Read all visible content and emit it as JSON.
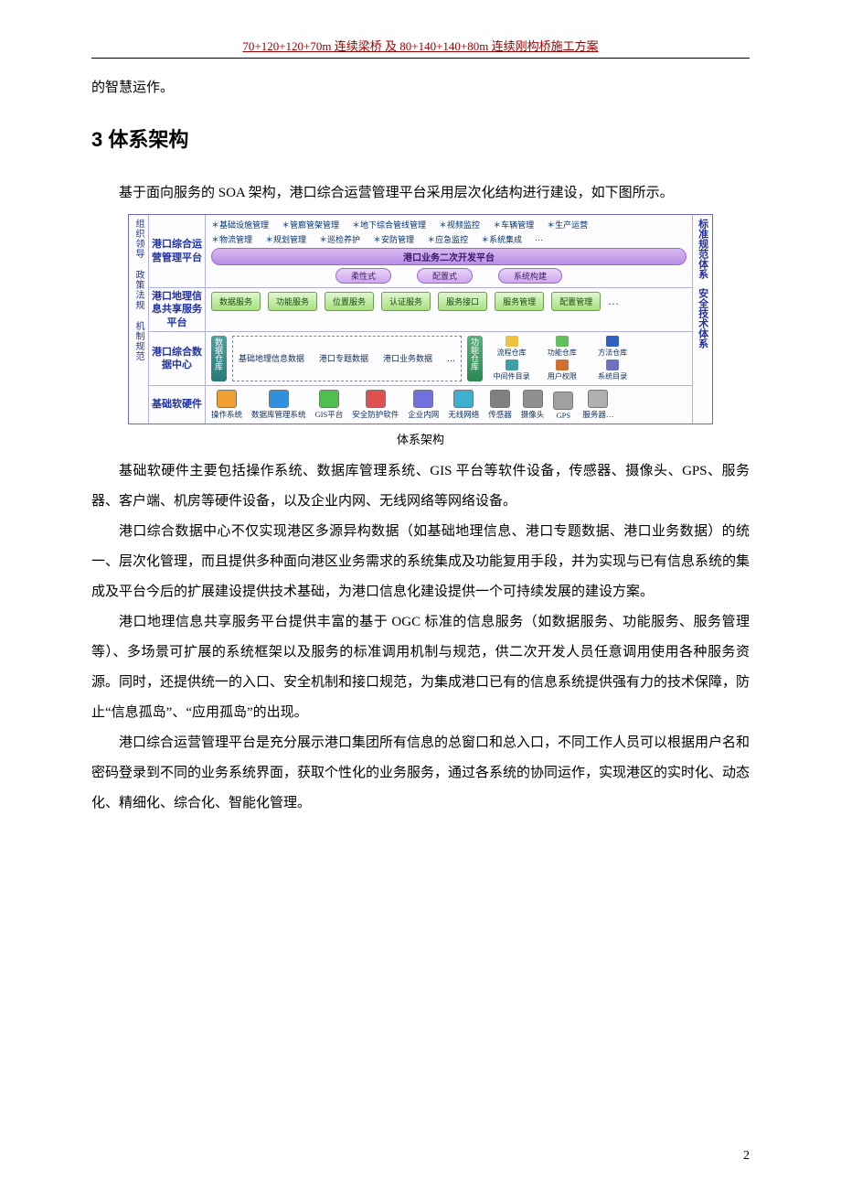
{
  "header": "70+120+120+70m 连续梁桥  及 80+140+140+80m 连续刚构桥施工方案",
  "trail": "的智慧运作。",
  "h2": "3 体系架构",
  "intro": "基于面向服务的 SOA 架构，港口综合运营管理平台采用层次化结构进行建设，如下图所示。",
  "caption": "体系架构",
  "p1": "基础软硬件主要包括操作系统、数据库管理系统、GIS 平台等软件设备，传感器、摄像头、GPS、服务器、客户端、机房等硬件设备，以及企业内网、无线网络等网络设备。",
  "p2": "港口综合数据中心不仅实现港区多源异构数据（如基础地理信息、港口专题数据、港口业务数据）的统一、层次化管理，而且提供多种面向港区业务需求的系统集成及功能复用手段，并为实现与已有信息系统的集成及平台今后的扩展建设提供技术基础，为港口信息化建设提供一个可持续发展的建设方案。",
  "p3": "港口地理信息共享服务平台提供丰富的基于 OGC 标准的信息服务（如数据服务、功能服务、服务管理等）、多场景可扩展的系统框架以及服务的标准调用机制与规范，供二次开发人员任意调用使用各种服务资源。同时，还提供统一的入口、安全机制和接口规范，为集成港口已有的信息系统提供强有力的技术保障，防止“信息孤岛”、“应用孤岛”的出现。",
  "p4": "港口综合运营管理平台是充分展示港口集团所有信息的总窗口和总入口，不同工作人员可以根据用户名和密码登录到不同的业务系统界面，获取个性化的业务服务，通过各系统的协同运作，实现港区的实时化、动态化、精细化、综合化、智能化管理。",
  "page_number": "2",
  "diagram": {
    "left_col": "组织领导  政策法规  机制规范",
    "right_col_top": "标准规范体系",
    "right_col_bot": "安全技术体系",
    "rows": {
      "r1": {
        "label": "港口综合运营管理平台",
        "stars_top": [
          "＊基础设施管理",
          "＊管廊管架管理",
          "＊地下综合管线管理",
          "＊视频监控",
          "＊车辆管理",
          "＊生产运营"
        ],
        "stars_bot": [
          "＊物流管理",
          "＊规划管理",
          "＊巡检养护",
          "＊安防管理",
          "＊应急监控",
          "＊系统集成",
          "…"
        ],
        "bar": "港口业务二次开发平台",
        "pills": [
          "柔性式",
          "配置式",
          "系统构建"
        ]
      },
      "r2": {
        "label": "港口地理信息共享服务平台",
        "services": [
          "数据服务",
          "功能服务",
          "位置服务",
          "认证服务",
          "服务接口",
          "服务管理",
          "配置管理"
        ],
        "dots": "…"
      },
      "r3": {
        "label": "港口综合数据中心",
        "left_box": "数据仓库",
        "dash_items": [
          "基础地理信息数据",
          "港口专题数据",
          "港口业务数据"
        ],
        "dash_dots": "…",
        "right_box": "功能仓库",
        "icons": [
          {
            "label": "流程仓库",
            "color": "#f0c040"
          },
          {
            "label": "功能仓库",
            "color": "#60c060"
          },
          {
            "label": "方法仓库",
            "color": "#3060c0"
          },
          {
            "label": "",
            "color": "transparent"
          },
          {
            "label": "中间件目录",
            "color": "#40a0a0"
          },
          {
            "label": "用户权限",
            "color": "#d07030"
          },
          {
            "label": "系统目录",
            "color": "#7070c0"
          },
          {
            "label": "",
            "color": "transparent"
          }
        ]
      },
      "r4": {
        "label": "基础软硬件",
        "hw": [
          {
            "label": "操作系统",
            "bg": "#f0a030"
          },
          {
            "label": "数据库管理系统",
            "bg": "#3090e0"
          },
          {
            "label": "GIS平台",
            "bg": "#50c050"
          },
          {
            "label": "安全防护软件",
            "bg": "#e05050"
          },
          {
            "label": "企业内网",
            "bg": "#7070e0"
          },
          {
            "label": "无线网络",
            "bg": "#40b0d0"
          },
          {
            "label": "传感器",
            "bg": "#808080"
          },
          {
            "label": "摄像头",
            "bg": "#909090"
          },
          {
            "label": "GPS",
            "bg": "#a0a0a0"
          },
          {
            "label": "服务器…",
            "bg": "#b0b0b0"
          }
        ]
      }
    }
  }
}
